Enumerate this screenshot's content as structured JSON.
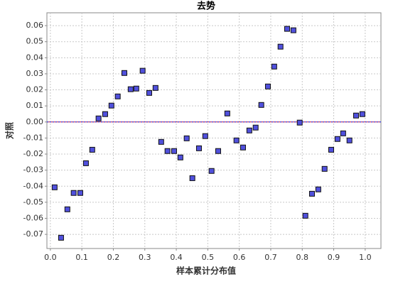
{
  "chart_data": {
    "type": "scatter",
    "title": "去势",
    "x_label": "样本累计分布值",
    "y_label": "对照",
    "color": "#5050dd",
    "grid": true,
    "reference_line": 0,
    "x": [
      0.0135,
      0.034,
      0.054,
      0.074,
      0.095,
      0.113,
      0.133,
      0.153,
      0.174,
      0.194,
      0.214,
      0.235,
      0.255,
      0.273,
      0.293,
      0.314,
      0.334,
      0.352,
      0.372,
      0.393,
      0.413,
      0.433,
      0.451,
      0.472,
      0.492,
      0.512,
      0.533,
      0.562,
      0.591,
      0.612,
      0.632,
      0.652,
      0.67,
      0.691,
      0.711,
      0.731,
      0.752,
      0.772,
      0.792,
      0.81,
      0.831,
      0.851,
      0.871,
      0.892,
      0.912,
      0.93,
      0.95,
      0.971,
      0.991
    ],
    "values": [
      -0.0407,
      -0.0721,
      -0.0544,
      -0.0442,
      -0.0442,
      -0.0257,
      -0.0173,
      0.0022,
      0.0049,
      0.0102,
      0.0159,
      0.0305,
      0.0204,
      0.0208,
      0.0319,
      0.0181,
      0.0212,
      -0.0124,
      -0.0181,
      -0.0181,
      -0.0221,
      -0.0102,
      -0.035,
      -0.0164,
      -0.0088,
      -0.0305,
      -0.0181,
      0.0053,
      -0.0115,
      -0.0159,
      -0.0053,
      -0.0035,
      0.0106,
      0.0221,
      0.0345,
      0.0469,
      0.058,
      0.0571,
      -0.0004,
      -0.0584,
      -0.0447,
      -0.042,
      -0.0292,
      -0.0173,
      -0.0106,
      -0.0071,
      -0.0115,
      0.004,
      0.0049
    ],
    "xlim": [
      -0.011,
      1.05
    ],
    "ylim": [
      -0.0788,
      0.068
    ],
    "xticks": [
      {
        "value": 0,
        "label": "0.0"
      },
      0.1,
      0.2,
      0.3,
      0.4,
      0.5,
      0.6,
      0.7,
      0.8,
      0.9,
      {
        "value": 1,
        "label": "1.0"
      }
    ],
    "yticks": [
      0.06,
      0.05,
      0.04,
      0.03,
      0.02,
      0.01,
      {
        "value": 0,
        "label": "0.00"
      },
      -0.01,
      -0.02,
      -0.03,
      -0.04,
      -0.05,
      -0.06,
      -0.07
    ]
  }
}
